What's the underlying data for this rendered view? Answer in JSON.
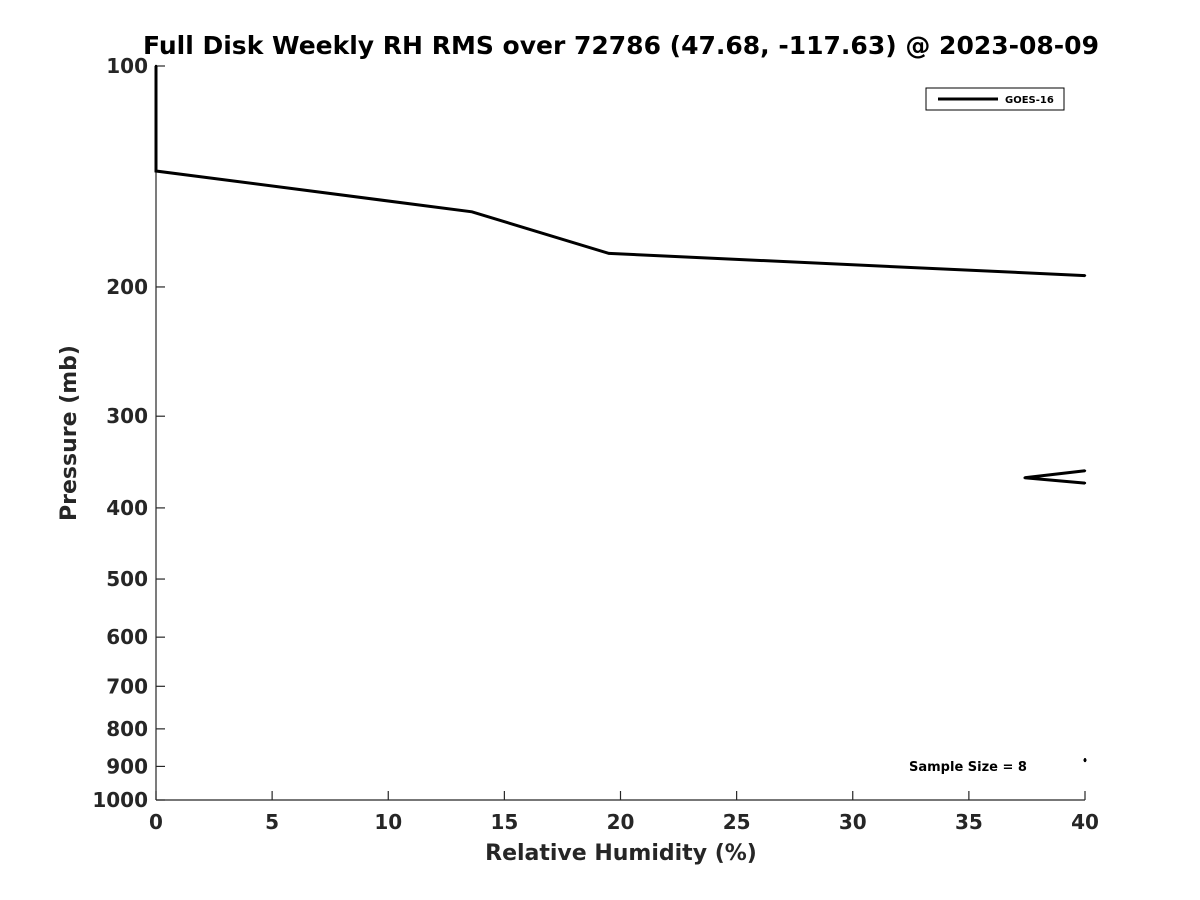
{
  "chart_data": {
    "type": "line",
    "title": "Full Disk Weekly RH RMS over 72786 (47.68, -117.63) @ 2023-08-09",
    "xlabel": "Relative Humidity (%)",
    "ylabel": "Pressure (mb)",
    "xlim": [
      0,
      40
    ],
    "ylim": [
      100,
      1000
    ],
    "yscale": "log",
    "yreverse": true,
    "grid": false,
    "legend_position": "top-right",
    "x_ticks": [
      0,
      5,
      10,
      15,
      20,
      25,
      30,
      35,
      40
    ],
    "y_ticks": [
      100,
      200,
      300,
      400,
      500,
      600,
      700,
      800,
      900,
      1000
    ],
    "series": [
      {
        "name": "GOES-16",
        "color": "#000000",
        "segments": [
          [
            {
              "x": 0,
              "p": 100
            },
            {
              "x": 0,
              "p": 125
            },
            {
              "x": 0,
              "p": 139
            },
            {
              "x": 13.6,
              "p": 158
            },
            {
              "x": 19.5,
              "p": 180
            },
            {
              "x": 40,
              "p": 193
            }
          ],
          [
            {
              "x": 40,
              "p": 356
            },
            {
              "x": 37.4,
              "p": 364
            },
            {
              "x": 40,
              "p": 370
            }
          ],
          [
            {
              "x": 40,
              "p": 880
            },
            {
              "x": 40,
              "p": 885
            }
          ]
        ]
      }
    ],
    "annotation": "Sample Size = 8"
  }
}
